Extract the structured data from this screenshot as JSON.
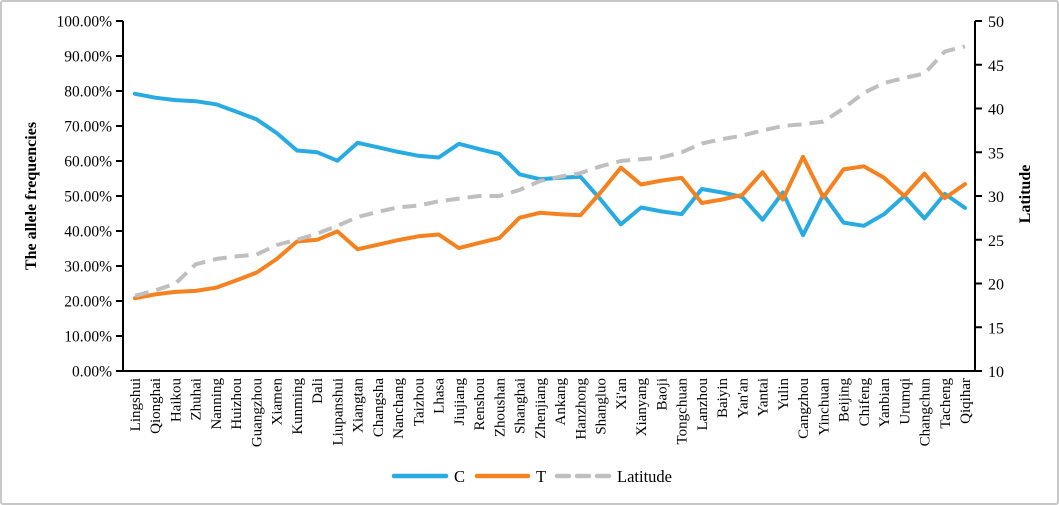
{
  "figure": {
    "description": "Line chart of allele frequencies (C and T) and latitude across Chinese cities",
    "background": "#ffffff",
    "border_color": "#c7c7c7",
    "axis_color": "#000000",
    "text_color": "#000000"
  },
  "chart_data": {
    "type": "line",
    "grid": false,
    "categories": [
      "Lingshui",
      "Qionghai",
      "Haikou",
      "Zhuhai",
      "Nanning",
      "Huizhou",
      "Guangzhou",
      "Xiamen",
      "Kunming",
      "Dali",
      "Liupanshui",
      "Xiangtan",
      "Changsha",
      "Nanchang",
      "Taizhou",
      "Lhasa",
      "Jiujiang",
      "Renshou",
      "Zhoushan",
      "Shanghai",
      "Zhenjiang",
      "Ankang",
      "Hanzhong",
      "Shangluo",
      "Xi'an",
      "Xianyang",
      "Baoji",
      "Tongchuan",
      "Lanzhou",
      "Baiyin",
      "Yan'an",
      "Yantai",
      "Yulin",
      "Cangzhou",
      "Yinchuan",
      "Beijing",
      "Chifeng",
      "Yanbian",
      "Urumqi",
      "Changchun",
      "Tacheng",
      "Qiqihar"
    ],
    "series": [
      {
        "name": "C",
        "axis": "left",
        "color": "#29abe2",
        "dash": false,
        "values": [
          79.2,
          78.1,
          77.4,
          77.1,
          76.2,
          74.1,
          71.9,
          68.0,
          63.0,
          62.5,
          60.1,
          65.2,
          63.9,
          62.6,
          61.5,
          61.0,
          64.9,
          63.4,
          62.0,
          56.2,
          54.8,
          55.2,
          55.5,
          49.0,
          41.9,
          46.7,
          45.6,
          44.8,
          52.0,
          51.0,
          49.7,
          43.2,
          51.0,
          38.8,
          50.4,
          42.4,
          41.5,
          44.8,
          50.0,
          43.6,
          50.6,
          46.6
        ]
      },
      {
        "name": "T",
        "axis": "left",
        "color": "#f58220",
        "dash": false,
        "values": [
          20.8,
          21.9,
          22.6,
          22.9,
          23.8,
          25.9,
          28.1,
          32.0,
          37.0,
          37.5,
          39.9,
          34.8,
          36.1,
          37.4,
          38.5,
          39.0,
          35.1,
          36.6,
          38.0,
          43.8,
          45.2,
          44.8,
          44.5,
          51.0,
          58.1,
          53.3,
          54.4,
          55.2,
          48.0,
          49.0,
          50.3,
          56.8,
          49.0,
          61.2,
          49.6,
          57.6,
          58.5,
          55.2,
          50.0,
          56.4,
          49.4,
          53.4
        ]
      },
      {
        "name": "Latitude",
        "axis": "right",
        "color": "#bfbfbf",
        "dash": true,
        "values": [
          18.6,
          19.2,
          20.0,
          22.2,
          22.8,
          23.1,
          23.3,
          24.4,
          25.0,
          25.7,
          26.6,
          27.6,
          28.2,
          28.7,
          28.9,
          29.4,
          29.7,
          30.0,
          30.0,
          30.7,
          31.7,
          32.2,
          32.6,
          33.4,
          34.0,
          34.2,
          34.4,
          35.0,
          36.0,
          36.5,
          36.9,
          37.5,
          38.0,
          38.2,
          38.5,
          40.0,
          41.8,
          42.9,
          43.5,
          44.0,
          46.5,
          47.1
        ]
      }
    ],
    "left_axis": {
      "label": "The allele frequencies",
      "min": 0,
      "max": 100,
      "step": 10,
      "tick_values": [
        0,
        10,
        20,
        30,
        40,
        50,
        60,
        70,
        80,
        90,
        100
      ],
      "tick_labels": [
        "0.00%",
        "10.00%",
        "20.00%",
        "30.00%",
        "40.00%",
        "50.00%",
        "60.00%",
        "70.00%",
        "80.00%",
        "90.00%",
        "100.00%"
      ]
    },
    "right_axis": {
      "label": "Latitude",
      "min": 10,
      "max": 50,
      "step": 5,
      "tick_values": [
        10,
        15,
        20,
        25,
        30,
        35,
        40,
        45,
        50
      ],
      "tick_labels": [
        "10",
        "15",
        "20",
        "25",
        "30",
        "35",
        "40",
        "45",
        "50"
      ]
    },
    "legend": {
      "position": "bottom",
      "items": [
        {
          "label": "C",
          "color": "#29abe2",
          "dash": false
        },
        {
          "label": "T",
          "color": "#f58220",
          "dash": false
        },
        {
          "label": "Latitude",
          "color": "#bfbfbf",
          "dash": true
        }
      ]
    }
  }
}
